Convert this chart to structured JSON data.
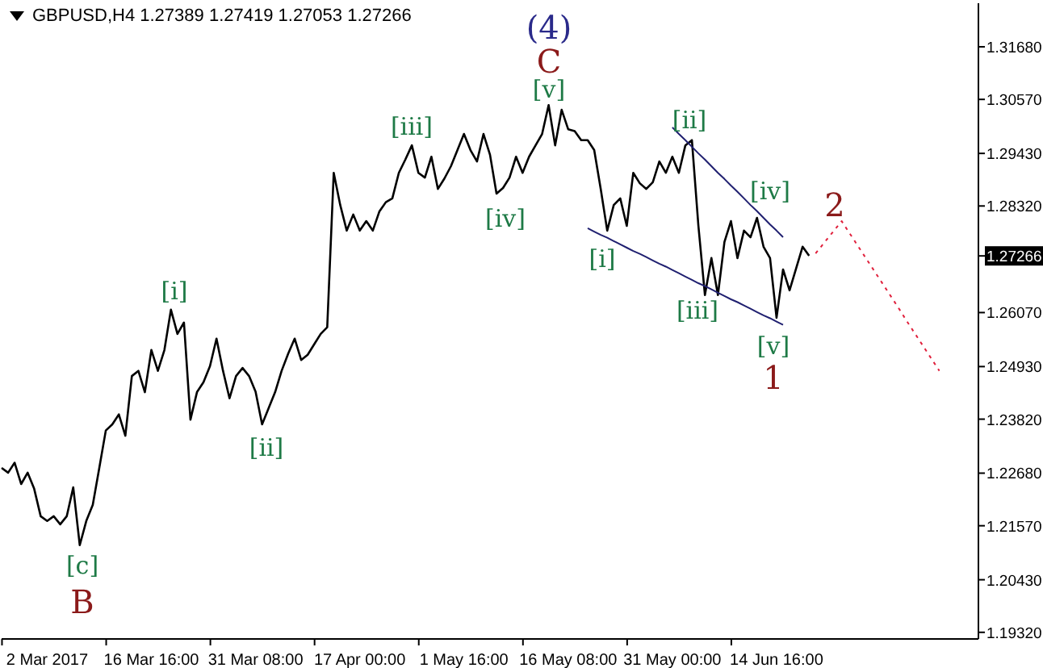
{
  "chart_data": {
    "type": "line",
    "title": "GBPUSD,H4  1.27389 1.27419 1.27053 1.27266",
    "marker": "none",
    "grid": false,
    "legend": false,
    "categories": [
      null,
      null,
      null,
      null,
      null,
      null,
      null,
      "2 Mar 2017",
      null,
      null,
      null,
      null,
      null,
      null,
      null,
      null,
      null,
      null,
      null,
      null,
      null,
      null,
      null,
      "16 Mar 16:00",
      null,
      null,
      null,
      null,
      null,
      null,
      null,
      null,
      null,
      null,
      null,
      null,
      null,
      null,
      null,
      "31 Mar 08:00",
      null,
      null,
      null,
      null,
      null,
      null,
      null,
      null,
      null,
      null,
      null,
      null,
      null,
      null,
      null,
      "17 Apr 00:00",
      null,
      null,
      null,
      null,
      null,
      null,
      null,
      null,
      null,
      null,
      null,
      null,
      null,
      null,
      null,
      "1 May 16:00",
      null,
      null,
      null,
      null,
      null,
      null,
      null,
      null,
      null,
      null,
      null,
      null,
      null,
      null,
      null,
      "16 May 08:00",
      null,
      null,
      null,
      null,
      null,
      null,
      null,
      null,
      null,
      null,
      null,
      null,
      null,
      null,
      null,
      "31 May 00:00",
      null,
      null,
      null,
      null,
      null,
      null,
      null,
      null,
      null,
      null,
      null,
      null,
      null,
      null,
      null,
      "14 Jun 16:00",
      null,
      null,
      null,
      null,
      null,
      null,
      null,
      null,
      null,
      null,
      null,
      null,
      null,
      null,
      null,
      null,
      null,
      null,
      null,
      null,
      null,
      null,
      null,
      null,
      null,
      null,
      null,
      null,
      null,
      null,
      null
    ],
    "ylim": [
      1.1918,
      1.326
    ],
    "yticks": [
      {
        "value": 1.3168,
        "label": "1.31680"
      },
      {
        "value": 1.3057,
        "label": "1.30570"
      },
      {
        "value": 1.2943,
        "label": "1.29430"
      },
      {
        "value": 1.2832,
        "label": "1.28320"
      },
      {
        "value": 1.27266,
        "label": "1.27266"
      },
      {
        "value": 1.2607,
        "label": "1.26070"
      },
      {
        "value": 1.2493,
        "label": "1.24930"
      },
      {
        "value": 1.2382,
        "label": "1.23820"
      },
      {
        "value": 1.2268,
        "label": "1.22680"
      },
      {
        "value": 1.2157,
        "label": "1.21570"
      },
      {
        "value": 1.2043,
        "label": "1.20430"
      },
      {
        "value": 1.1932,
        "label": "1.19320"
      }
    ],
    "series": [
      {
        "color": "#000000",
        "values": [
          1.2279,
          1.2269,
          1.229,
          1.2245,
          1.2269,
          1.2235,
          1.2177,
          1.2167,
          1.2177,
          1.216,
          1.2177,
          1.2238,
          1.2116,
          1.2167,
          1.2201,
          1.2279,
          1.2358,
          1.2371,
          1.2392,
          1.2347,
          1.2473,
          1.2484,
          1.2439,
          1.2528,
          1.2484,
          1.2528,
          1.2613,
          1.2562,
          1.2586,
          1.2381,
          1.2439,
          1.246,
          1.2494,
          1.2552,
          1.2484,
          1.2426,
          1.2473,
          1.249,
          1.2473,
          1.244,
          1.2371,
          1.2405,
          1.2439,
          1.2484,
          1.252,
          1.2552,
          1.2507,
          1.2518,
          1.254,
          1.2562,
          1.2576,
          1.2902,
          1.2834,
          1.278,
          1.2814,
          1.278,
          1.28,
          1.278,
          1.282,
          1.284,
          1.2848,
          1.2902,
          1.293,
          1.296,
          1.2902,
          1.2892,
          1.2936,
          1.2868,
          1.289,
          1.2916,
          1.295,
          1.2984,
          1.295,
          1.2926,
          1.2984,
          1.294,
          1.2858,
          1.287,
          1.2892,
          1.2936,
          1.2902,
          1.2936,
          1.296,
          1.2984,
          1.3045,
          1.296,
          1.3035,
          1.2994,
          1.299,
          1.2971,
          1.2971,
          1.295,
          1.2868,
          1.278,
          1.2834,
          1.2848,
          1.279,
          1.2902,
          1.288,
          1.2868,
          1.2882,
          1.2926,
          1.2902,
          1.2936,
          1.2902,
          1.296,
          1.2971,
          1.279,
          1.2644,
          1.2722,
          1.2644,
          1.2756,
          1.28,
          1.2722,
          1.278,
          1.2766,
          1.2807,
          1.2746,
          1.2722,
          1.2596,
          1.2698,
          1.2654,
          1.27,
          1.2746,
          1.2727,
          null,
          null,
          null,
          null,
          null,
          null,
          null,
          null,
          null,
          null,
          null,
          null,
          null,
          null,
          null,
          null,
          null,
          null,
          null,
          null,
          null,
          null,
          null,
          null,
          null,
          null
        ]
      },
      {
        "color": "#202070",
        "values": [
          null,
          null,
          null,
          null,
          null,
          null,
          null,
          null,
          null,
          null,
          null,
          null,
          null,
          null,
          null,
          null,
          null,
          null,
          null,
          null,
          null,
          null,
          null,
          null,
          null,
          null,
          null,
          null,
          null,
          null,
          null,
          null,
          null,
          null,
          null,
          null,
          null,
          null,
          null,
          null,
          null,
          null,
          null,
          null,
          null,
          null,
          null,
          null,
          null,
          null,
          null,
          null,
          null,
          null,
          null,
          null,
          null,
          null,
          null,
          null,
          null,
          null,
          null,
          null,
          null,
          null,
          null,
          null,
          null,
          null,
          null,
          null,
          null,
          null,
          null,
          null,
          null,
          null,
          null,
          null,
          null,
          null,
          null,
          null,
          null,
          null,
          null,
          null,
          null,
          null,
          1.2785,
          1.2778,
          1.2771,
          1.2765,
          1.2758,
          1.2751,
          1.2744,
          1.2737,
          1.2731,
          1.2724,
          1.2717,
          1.271,
          1.2704,
          1.2697,
          1.269,
          1.2683,
          1.2676,
          1.2669,
          1.2663,
          1.2656,
          1.2649,
          1.2642,
          1.2635,
          1.2629,
          1.2622,
          1.2615,
          1.2608,
          1.2601,
          1.2595,
          1.2588,
          1.2581,
          null,
          null,
          null,
          null,
          null,
          null,
          null,
          null,
          null,
          null,
          null,
          null,
          null,
          null,
          null,
          null,
          null,
          null,
          null,
          null,
          null,
          null,
          null,
          null,
          null,
          null,
          null,
          null,
          null,
          null
        ]
      },
      {
        "color": "#202070",
        "values": [
          null,
          null,
          null,
          null,
          null,
          null,
          null,
          null,
          null,
          null,
          null,
          null,
          null,
          null,
          null,
          null,
          null,
          null,
          null,
          null,
          null,
          null,
          null,
          null,
          null,
          null,
          null,
          null,
          null,
          null,
          null,
          null,
          null,
          null,
          null,
          null,
          null,
          null,
          null,
          null,
          null,
          null,
          null,
          null,
          null,
          null,
          null,
          null,
          null,
          null,
          null,
          null,
          null,
          null,
          null,
          null,
          null,
          null,
          null,
          null,
          null,
          null,
          null,
          null,
          null,
          null,
          null,
          null,
          null,
          null,
          null,
          null,
          null,
          null,
          null,
          null,
          null,
          null,
          null,
          null,
          null,
          null,
          null,
          null,
          null,
          null,
          null,
          null,
          null,
          null,
          null,
          null,
          null,
          null,
          null,
          null,
          null,
          null,
          null,
          null,
          null,
          null,
          null,
          1.2998,
          1.2984,
          1.2971,
          1.2957,
          1.2943,
          1.293,
          1.2916,
          1.2902,
          1.2889,
          1.2875,
          1.2862,
          1.2848,
          1.2834,
          1.2821,
          1.2807,
          1.2793,
          1.278,
          1.2766,
          null,
          null,
          null,
          null,
          null,
          null,
          null,
          null,
          null,
          null,
          null,
          null,
          null,
          null,
          null,
          null,
          null,
          null,
          null,
          null,
          null,
          null,
          null,
          null,
          null,
          null,
          null,
          null,
          null,
          null
        ]
      },
      {
        "color": "#e0203c",
        "line_style": "dotted",
        "values": [
          null,
          null,
          null,
          null,
          null,
          null,
          null,
          null,
          null,
          null,
          null,
          null,
          null,
          null,
          null,
          null,
          null,
          null,
          null,
          null,
          null,
          null,
          null,
          null,
          null,
          null,
          null,
          null,
          null,
          null,
          null,
          null,
          null,
          null,
          null,
          null,
          null,
          null,
          null,
          null,
          null,
          null,
          null,
          null,
          null,
          null,
          null,
          null,
          null,
          null,
          null,
          null,
          null,
          null,
          null,
          null,
          null,
          null,
          null,
          null,
          null,
          null,
          null,
          null,
          null,
          null,
          null,
          null,
          null,
          null,
          null,
          null,
          null,
          null,
          null,
          null,
          null,
          null,
          null,
          null,
          null,
          null,
          null,
          null,
          null,
          null,
          null,
          null,
          null,
          null,
          null,
          null,
          null,
          null,
          null,
          null,
          null,
          null,
          null,
          null,
          null,
          null,
          null,
          null,
          null,
          null,
          null,
          null,
          null,
          null,
          null,
          null,
          null,
          null,
          null,
          null,
          null,
          null,
          null,
          null,
          null,
          null,
          null,
          null,
          null,
          1.2732,
          1.2749,
          1.2766,
          1.2783,
          1.28,
          1.2779,
          1.2758,
          1.2737,
          1.2716,
          1.2695,
          1.2674,
          1.2653,
          1.2632,
          1.2611,
          1.2589,
          1.2568,
          1.2547,
          1.2526,
          1.2505,
          1.2484,
          null,
          null,
          null,
          null,
          null,
          null
        ]
      }
    ],
    "annotations": [
      "[c]",
      "B",
      "[i]",
      "[ii]",
      "[iii]",
      "[iv]",
      "[v]",
      "C",
      "(4)",
      "[i]",
      "[ii]",
      "[iii]",
      "[iv]",
      "[v]",
      "1",
      "2"
    ]
  }
}
